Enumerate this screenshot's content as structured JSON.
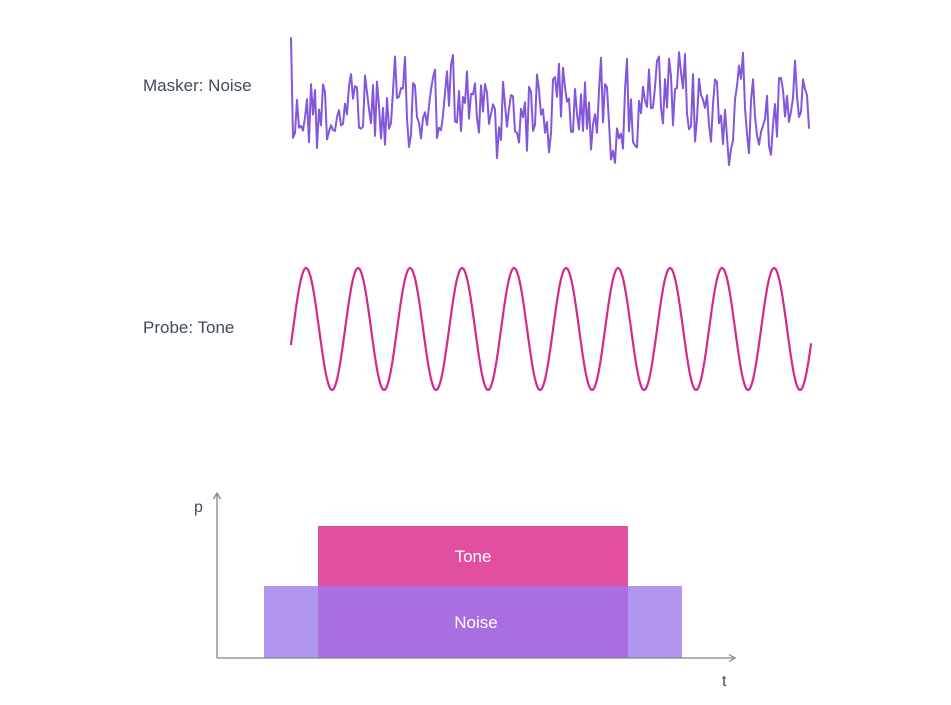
{
  "masker": {
    "label": "Masker: Noise",
    "color": "#8257dc"
  },
  "probe": {
    "label": "Probe: Tone",
    "color": "#d6288c",
    "cycles": 10
  },
  "timing": {
    "y_axis_label": "p",
    "x_axis_label": "t",
    "axis_color": "#7d8593",
    "tone": {
      "label": "Tone",
      "color": "#e24fa0"
    },
    "noise": {
      "label": "Noise",
      "color": "#b295ee",
      "overlap_color": "#a96edf"
    }
  }
}
